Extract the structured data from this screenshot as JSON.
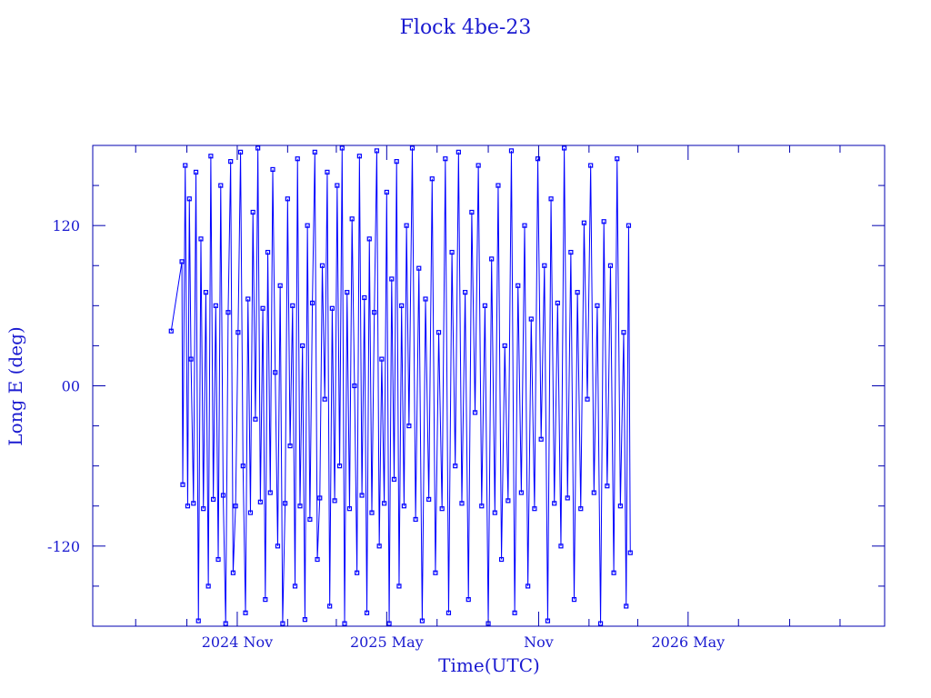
{
  "chart_data": {
    "type": "line",
    "title": "Flock 4be-23",
    "xlabel": "Time(UTC)",
    "ylabel": "Long E (deg)",
    "xlim": [
      "2024-05-10",
      "2026-12-25"
    ],
    "ylim": [
      -180,
      180
    ],
    "x_ticks": [
      {
        "date": "2024-11-01",
        "label": "2024 Nov"
      },
      {
        "date": "2025-05-01",
        "label": "2025 May"
      },
      {
        "date": "2025-11-01",
        "label": "Nov"
      },
      {
        "date": "2026-05-01",
        "label": "2026 May"
      }
    ],
    "x_minor_ticks": [
      "2024-07-01",
      "2024-09-01",
      "2025-01-01",
      "2025-03-01",
      "2025-07-01",
      "2025-09-01",
      "2026-01-01",
      "2026-03-01",
      "2026-07-01",
      "2026-09-01",
      "2026-11-01"
    ],
    "y_ticks": [
      {
        "value": 120,
        "label": "120"
      },
      {
        "value": 0,
        "label": "00"
      },
      {
        "value": -120,
        "label": "-120"
      }
    ],
    "y_minor_ticks": [
      150,
      90,
      60,
      30,
      -30,
      -60,
      -90,
      -150
    ],
    "grid": false,
    "colors": {
      "series": "#0000ff",
      "axes": "#0000b0",
      "text": "#1a1ad0"
    },
    "marker": "square",
    "series": [
      {
        "points": [
          [
            "2024-08-13",
            41
          ],
          [
            "2024-08-26",
            93
          ],
          [
            "2024-08-27",
            -74
          ],
          [
            "2024-08-30",
            165
          ],
          [
            "2024-09-02",
            -90
          ],
          [
            "2024-09-04",
            140
          ],
          [
            "2024-09-06",
            20
          ],
          [
            "2024-09-09",
            -88
          ],
          [
            "2024-09-12",
            160
          ],
          [
            "2024-09-15",
            -176
          ],
          [
            "2024-09-18",
            110
          ],
          [
            "2024-09-21",
            -92
          ],
          [
            "2024-09-24",
            70
          ],
          [
            "2024-09-27",
            -150
          ],
          [
            "2024-09-30",
            172
          ],
          [
            "2024-10-03",
            -85
          ],
          [
            "2024-10-06",
            60
          ],
          [
            "2024-10-09",
            -130
          ],
          [
            "2024-10-12",
            150
          ],
          [
            "2024-10-15",
            -82
          ],
          [
            "2024-10-18",
            -178
          ],
          [
            "2024-10-21",
            55
          ],
          [
            "2024-10-24",
            168
          ],
          [
            "2024-10-27",
            -140
          ],
          [
            "2024-10-30",
            -90
          ],
          [
            "2024-11-02",
            40
          ],
          [
            "2024-11-05",
            175
          ],
          [
            "2024-11-08",
            -60
          ],
          [
            "2024-11-11",
            -170
          ],
          [
            "2024-11-14",
            65
          ],
          [
            "2024-11-17",
            -95
          ],
          [
            "2024-11-20",
            130
          ],
          [
            "2024-11-23",
            -25
          ],
          [
            "2024-11-26",
            178
          ],
          [
            "2024-11-29",
            -87
          ],
          [
            "2024-12-02",
            58
          ],
          [
            "2024-12-05",
            -160
          ],
          [
            "2024-12-08",
            100
          ],
          [
            "2024-12-11",
            -80
          ],
          [
            "2024-12-14",
            162
          ],
          [
            "2024-12-17",
            10
          ],
          [
            "2024-12-20",
            -120
          ],
          [
            "2024-12-23",
            75
          ],
          [
            "2024-12-26",
            -178
          ],
          [
            "2024-12-29",
            -88
          ],
          [
            "2025-01-01",
            140
          ],
          [
            "2025-01-04",
            -45
          ],
          [
            "2025-01-07",
            60
          ],
          [
            "2025-01-10",
            -150
          ],
          [
            "2025-01-13",
            170
          ],
          [
            "2025-01-16",
            -90
          ],
          [
            "2025-01-19",
            30
          ],
          [
            "2025-01-22",
            -175
          ],
          [
            "2025-01-25",
            120
          ],
          [
            "2025-01-28",
            -100
          ],
          [
            "2025-01-31",
            62
          ],
          [
            "2025-02-03",
            175
          ],
          [
            "2025-02-06",
            -130
          ],
          [
            "2025-02-09",
            -84
          ],
          [
            "2025-02-12",
            90
          ],
          [
            "2025-02-15",
            -10
          ],
          [
            "2025-02-18",
            160
          ],
          [
            "2025-02-21",
            -165
          ],
          [
            "2025-02-24",
            58
          ],
          [
            "2025-02-27",
            -86
          ],
          [
            "2025-03-02",
            150
          ],
          [
            "2025-03-05",
            -60
          ],
          [
            "2025-03-08",
            178
          ],
          [
            "2025-03-11",
            -178
          ],
          [
            "2025-03-14",
            70
          ],
          [
            "2025-03-17",
            -92
          ],
          [
            "2025-03-20",
            125
          ],
          [
            "2025-03-23",
            0
          ],
          [
            "2025-03-26",
            -140
          ],
          [
            "2025-03-29",
            172
          ],
          [
            "2025-04-01",
            -82
          ],
          [
            "2025-04-04",
            66
          ],
          [
            "2025-04-07",
            -170
          ],
          [
            "2025-04-10",
            110
          ],
          [
            "2025-04-13",
            -95
          ],
          [
            "2025-04-16",
            55
          ],
          [
            "2025-04-19",
            176
          ],
          [
            "2025-04-22",
            -120
          ],
          [
            "2025-04-25",
            20
          ],
          [
            "2025-04-28",
            -88
          ],
          [
            "2025-05-01",
            145
          ],
          [
            "2025-05-04",
            -178
          ],
          [
            "2025-05-07",
            80
          ],
          [
            "2025-05-10",
            -70
          ],
          [
            "2025-05-13",
            168
          ],
          [
            "2025-05-16",
            -150
          ],
          [
            "2025-05-19",
            60
          ],
          [
            "2025-05-22",
            -90
          ],
          [
            "2025-05-25",
            120
          ],
          [
            "2025-05-28",
            -30
          ],
          [
            "2025-06-01",
            178
          ],
          [
            "2025-06-05",
            -100
          ],
          [
            "2025-06-09",
            88
          ],
          [
            "2025-06-13",
            -176
          ],
          [
            "2025-06-17",
            65
          ],
          [
            "2025-06-21",
            -85
          ],
          [
            "2025-06-25",
            155
          ],
          [
            "2025-06-29",
            -140
          ],
          [
            "2025-07-03",
            40
          ],
          [
            "2025-07-07",
            -92
          ],
          [
            "2025-07-11",
            170
          ],
          [
            "2025-07-15",
            -170
          ],
          [
            "2025-07-19",
            100
          ],
          [
            "2025-07-23",
            -60
          ],
          [
            "2025-07-27",
            175
          ],
          [
            "2025-07-31",
            -88
          ],
          [
            "2025-08-04",
            70
          ],
          [
            "2025-08-08",
            -160
          ],
          [
            "2025-08-12",
            130
          ],
          [
            "2025-08-16",
            -20
          ],
          [
            "2025-08-20",
            165
          ],
          [
            "2025-08-24",
            -90
          ],
          [
            "2025-08-28",
            60
          ],
          [
            "2025-09-01",
            -178
          ],
          [
            "2025-09-05",
            95
          ],
          [
            "2025-09-09",
            -95
          ],
          [
            "2025-09-13",
            150
          ],
          [
            "2025-09-17",
            -130
          ],
          [
            "2025-09-21",
            30
          ],
          [
            "2025-09-25",
            -86
          ],
          [
            "2025-09-29",
            176
          ],
          [
            "2025-10-03",
            -170
          ],
          [
            "2025-10-07",
            75
          ],
          [
            "2025-10-11",
            -80
          ],
          [
            "2025-10-15",
            120
          ],
          [
            "2025-10-19",
            -150
          ],
          [
            "2025-10-23",
            50
          ],
          [
            "2025-10-27",
            -92
          ],
          [
            "2025-10-31",
            170
          ],
          [
            "2025-11-04",
            -40
          ],
          [
            "2025-11-08",
            90
          ],
          [
            "2025-11-12",
            -176
          ],
          [
            "2025-11-16",
            140
          ],
          [
            "2025-11-20",
            -88
          ],
          [
            "2025-11-24",
            62
          ],
          [
            "2025-11-28",
            -120
          ],
          [
            "2025-12-02",
            178
          ],
          [
            "2025-12-06",
            -84
          ],
          [
            "2025-12-10",
            100
          ],
          [
            "2025-12-14",
            -160
          ],
          [
            "2025-12-18",
            70
          ],
          [
            "2025-12-22",
            -92
          ],
          [
            "2025-12-26",
            122
          ],
          [
            "2025-12-30",
            -10
          ],
          [
            "2026-01-03",
            165
          ],
          [
            "2026-01-07",
            -80
          ],
          [
            "2026-01-11",
            60
          ],
          [
            "2026-01-15",
            -178
          ],
          [
            "2026-01-19",
            123
          ],
          [
            "2026-01-23",
            -75
          ],
          [
            "2026-01-27",
            90
          ],
          [
            "2026-01-31",
            -140
          ],
          [
            "2026-02-04",
            170
          ],
          [
            "2026-02-08",
            -90
          ],
          [
            "2026-02-12",
            40
          ],
          [
            "2026-02-15",
            -165
          ],
          [
            "2026-02-18",
            120
          ],
          [
            "2026-02-20",
            -125
          ]
        ]
      }
    ]
  }
}
